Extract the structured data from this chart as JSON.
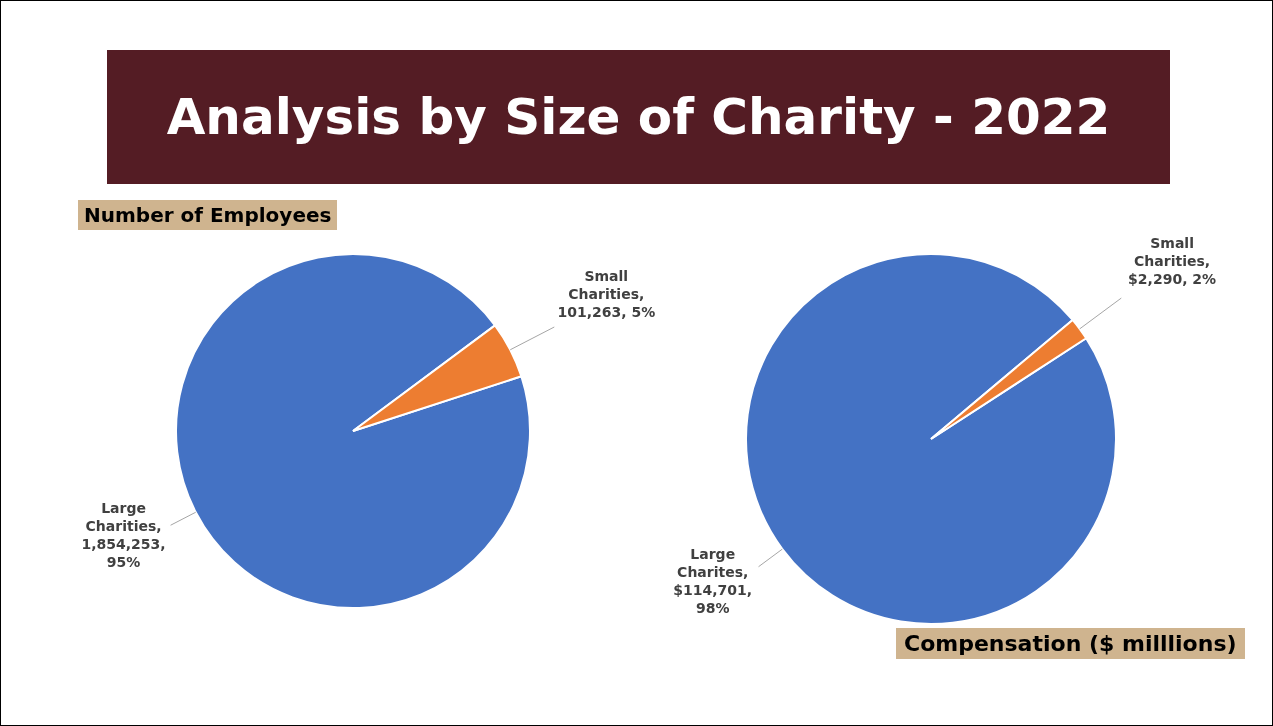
{
  "chart_data": [
    {
      "type": "pie",
      "title": "Analysis by Size of Charity - 2022",
      "subtitle": "Number of Employees",
      "categories": [
        "Large Charities",
        "Small Charities"
      ],
      "values": [
        1854253,
        101263
      ],
      "colors": [
        "#4472c4",
        "#ed7d31"
      ],
      "value_labels": [
        ", 1,854,253, 95%",
        ", 101,263, 5%"
      ],
      "legend": false
    },
    {
      "type": "pie",
      "title": "Compensation ($ milllions)",
      "categories": [
        "Large Charites",
        "Small Charities"
      ],
      "values": [
        114701,
        2290
      ],
      "colors": [
        "#4472c4",
        "#ed7d31"
      ],
      "value_labels": [
        ", $114,701, 98%",
        ", $2,290, 2%"
      ],
      "legend": false
    }
  ]
}
